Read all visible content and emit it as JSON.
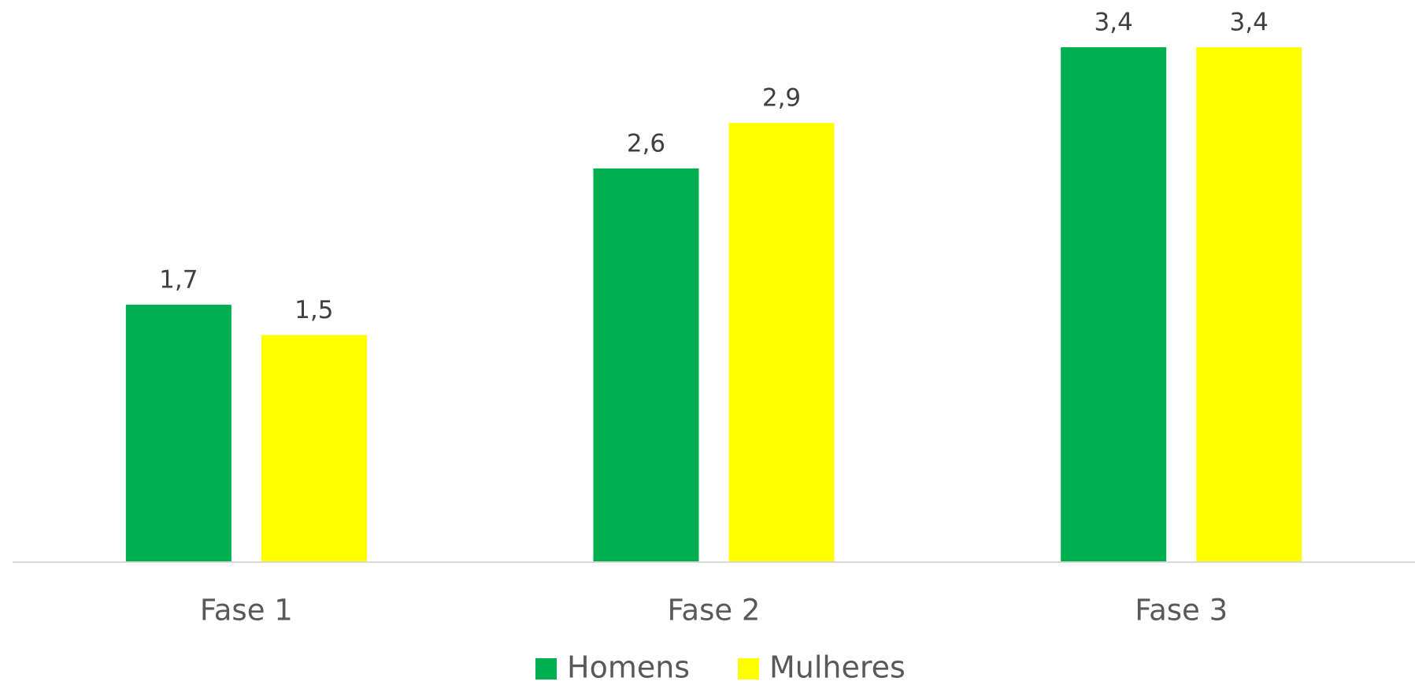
{
  "chart_data": {
    "type": "bar",
    "categories": [
      "Fase 1",
      "Fase 2",
      "Fase 3"
    ],
    "series": [
      {
        "name": "Homens",
        "color": "#00b050",
        "values": [
          1.7,
          2.6,
          3.4
        ],
        "value_labels": [
          "1,7",
          "2,6",
          "3,4"
        ]
      },
      {
        "name": "Mulheres",
        "color": "#ffff00",
        "values": [
          1.5,
          2.9,
          3.4
        ],
        "value_labels": [
          "1,5",
          "2,9",
          "3,4"
        ]
      }
    ],
    "legend": "bottom"
  }
}
